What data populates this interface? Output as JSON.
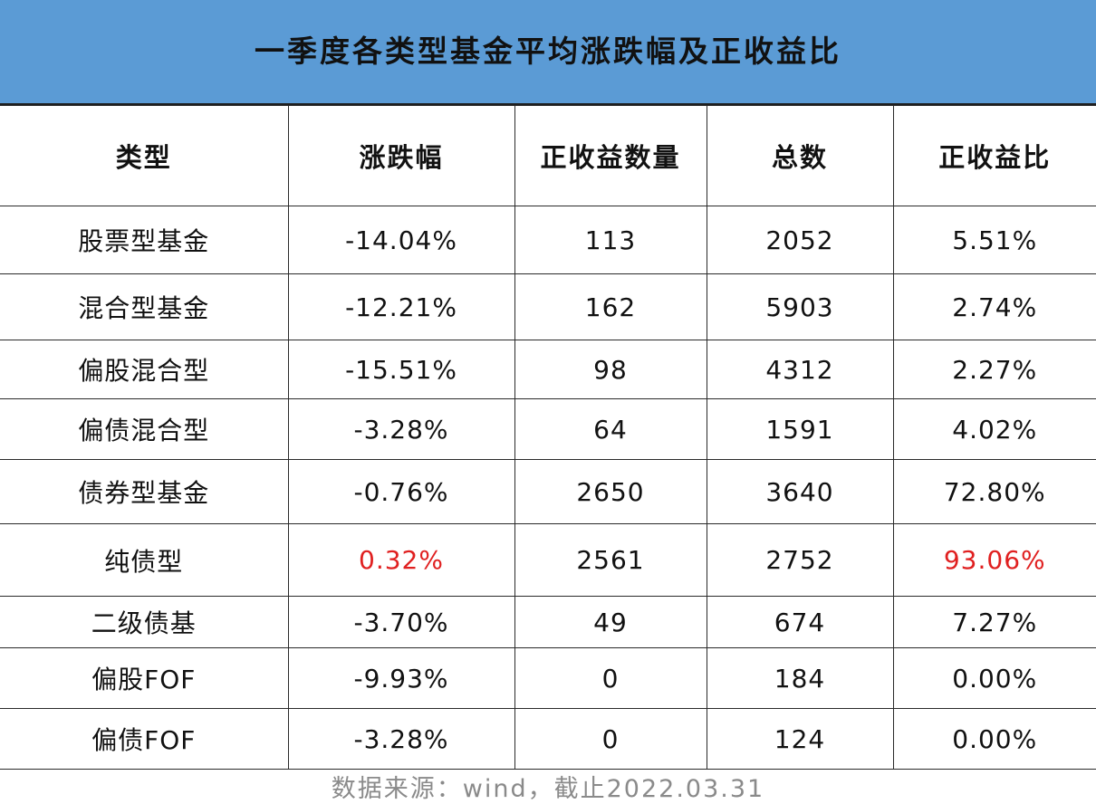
{
  "title": "一季度各类型基金平均涨跌幅及正收益比",
  "colors": {
    "header_bg": "#5b9bd5",
    "highlight": "#e02020",
    "source_text": "#8a8a8a"
  },
  "chart_data": {
    "type": "table",
    "title": "一季度各类型基金平均涨跌幅及正收益比",
    "columns": [
      "类型",
      "涨跌幅",
      "正收益数量",
      "总数",
      "正收益比"
    ],
    "rows": [
      {
        "type": "股票型基金",
        "change": "-14.04%",
        "positive_count": "113",
        "total": "2052",
        "positive_ratio": "5.51%"
      },
      {
        "type": "混合型基金",
        "change": "-12.21%",
        "positive_count": "162",
        "total": "5903",
        "positive_ratio": "2.74%"
      },
      {
        "type": "偏股混合型",
        "change": "-15.51%",
        "positive_count": "98",
        "total": "4312",
        "positive_ratio": "2.27%"
      },
      {
        "type": "偏债混合型",
        "change": "-3.28%",
        "positive_count": "64",
        "total": "1591",
        "positive_ratio": "4.02%"
      },
      {
        "type": "债券型基金",
        "change": "-0.76%",
        "positive_count": "2650",
        "total": "3640",
        "positive_ratio": "72.80%"
      },
      {
        "type": "纯债型",
        "change": "0.32%",
        "positive_count": "2561",
        "total": "2752",
        "positive_ratio": "93.06%"
      },
      {
        "type": "二级债基",
        "change": "-3.70%",
        "positive_count": "49",
        "total": "674",
        "positive_ratio": "7.27%"
      },
      {
        "type": "偏股FOF",
        "change": "-9.93%",
        "positive_count": "0",
        "total": "184",
        "positive_ratio": "0.00%"
      },
      {
        "type": "偏债FOF",
        "change": "-3.28%",
        "positive_count": "0",
        "total": "124",
        "positive_ratio": "0.00%"
      }
    ],
    "highlighted_row": 5
  },
  "source_note": "数据来源：wind，截止2022.03.31"
}
